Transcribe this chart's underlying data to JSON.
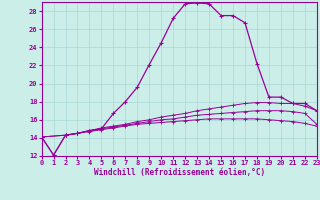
{
  "xlabel": "Windchill (Refroidissement éolien,°C)",
  "background_color": "#cceee8",
  "line_color": "#990099",
  "grid_color": "#aad8d8",
  "xlim": [
    0,
    23
  ],
  "ylim": [
    12,
    29
  ],
  "xticks": [
    0,
    1,
    2,
    3,
    4,
    5,
    6,
    7,
    8,
    9,
    10,
    11,
    12,
    13,
    14,
    15,
    16,
    17,
    18,
    19,
    20,
    21,
    22,
    23
  ],
  "yticks": [
    12,
    14,
    16,
    18,
    20,
    22,
    24,
    26,
    28
  ],
  "line1_x": [
    0,
    1,
    2,
    3,
    4,
    5,
    6,
    7,
    8,
    9,
    10,
    11,
    12,
    13,
    14,
    15,
    16,
    17,
    18,
    19,
    20,
    21,
    22,
    23
  ],
  "line1_y": [
    14.1,
    12.1,
    14.3,
    14.5,
    14.8,
    15.0,
    16.7,
    18.0,
    19.6,
    22.1,
    24.5,
    27.2,
    28.8,
    28.9,
    28.8,
    27.5,
    27.5,
    26.7,
    22.2,
    18.5,
    18.5,
    17.8,
    17.8,
    17.0
  ],
  "line2_x": [
    0,
    1,
    2,
    3,
    4,
    5,
    6,
    7,
    8,
    9,
    10,
    11,
    12,
    13,
    14,
    15,
    16,
    17,
    18,
    19,
    20,
    21,
    22,
    23
  ],
  "line2_y": [
    14.1,
    12.1,
    14.3,
    14.5,
    14.8,
    15.1,
    15.3,
    15.5,
    15.8,
    16.0,
    16.3,
    16.5,
    16.7,
    17.0,
    17.2,
    17.4,
    17.6,
    17.8,
    17.9,
    17.9,
    17.8,
    17.8,
    17.5,
    17.0
  ],
  "line3_x": [
    0,
    2,
    3,
    4,
    5,
    6,
    7,
    8,
    9,
    10,
    11,
    12,
    13,
    14,
    15,
    16,
    17,
    18,
    19,
    20,
    21,
    22,
    23
  ],
  "line3_y": [
    14.1,
    14.3,
    14.5,
    14.8,
    15.0,
    15.2,
    15.4,
    15.6,
    15.8,
    16.0,
    16.1,
    16.3,
    16.5,
    16.6,
    16.7,
    16.8,
    16.9,
    17.0,
    17.0,
    17.0,
    16.9,
    16.7,
    15.5
  ],
  "line4_x": [
    0,
    2,
    3,
    4,
    5,
    6,
    7,
    8,
    9,
    10,
    11,
    12,
    13,
    14,
    15,
    16,
    17,
    18,
    19,
    20,
    21,
    22,
    23
  ],
  "line4_y": [
    14.1,
    14.3,
    14.5,
    14.7,
    14.9,
    15.1,
    15.3,
    15.5,
    15.6,
    15.7,
    15.8,
    15.9,
    16.0,
    16.1,
    16.1,
    16.1,
    16.1,
    16.1,
    16.0,
    15.9,
    15.8,
    15.6,
    15.3
  ]
}
